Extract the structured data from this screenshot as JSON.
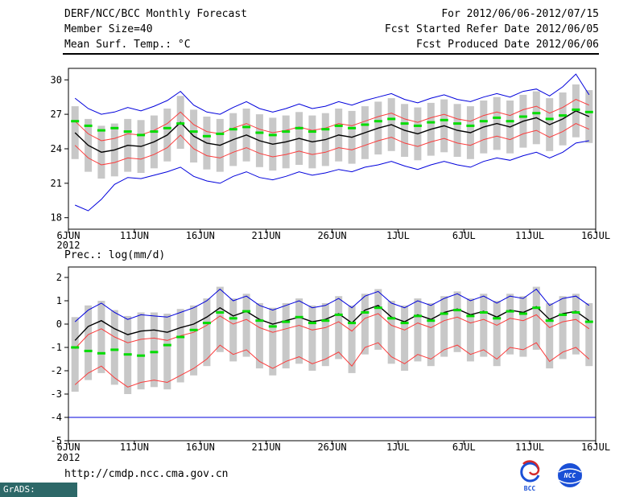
{
  "header": {
    "left": [
      "DERF/NCC/BCC Monthly Forecast",
      "Member Size=40",
      "Mean Surf. Temp.: °C"
    ],
    "right": [
      "For 2012/06/06-2012/07/15",
      "Fcst Started Refer Date 2012/06/05",
      "Fcst Produced Date 2012/06/06"
    ]
  },
  "footer": {
    "url": "http://cmdp.ncc.cma.gov.cn",
    "grads_credit": "GrADS: COLA/IGES",
    "logos": [
      {
        "label": "BCC"
      },
      {
        "label": "NCC"
      }
    ]
  },
  "colors": {
    "blue": "#0000dc",
    "red": "#fa3c3c",
    "black": "#000000",
    "green": "#00dc00",
    "gray_bar": "#c8c8c8",
    "frame": "#000000",
    "stamp_bg": "#2d6868",
    "logo_blue": "#1a4fd6",
    "logo_red": "#d42a2a"
  },
  "chart_data": [
    {
      "type": "line",
      "title": "Mean Surf. Temp.: °C",
      "x_tick_labels": [
        "6JUN",
        "11JUN",
        "16JUN",
        "21JUN",
        "26JUN",
        "1JUL",
        "6JUL",
        "11JUL",
        "16JUL"
      ],
      "x_sub_label": "2012",
      "n_days": 40,
      "x_axis_days": 40,
      "ylim": [
        17,
        31
      ],
      "yticks": [
        18,
        21,
        24,
        27,
        30
      ],
      "grid": false,
      "legend": false,
      "bars": {
        "name": "ensemble-spread",
        "low": [
          23.1,
          22.0,
          21.4,
          21.6,
          22.0,
          21.9,
          22.3,
          22.9,
          24.0,
          22.8,
          22.2,
          22.0,
          22.5,
          22.9,
          22.4,
          22.1,
          22.3,
          22.6,
          22.3,
          22.5,
          22.9,
          22.7,
          23.1,
          23.5,
          23.8,
          23.3,
          23.0,
          23.4,
          23.7,
          23.3,
          23.1,
          23.6,
          23.9,
          23.6,
          24.1,
          24.4,
          23.8,
          24.3,
          25.0,
          24.5
        ],
        "high": [
          27.7,
          26.6,
          26.0,
          26.2,
          26.6,
          26.5,
          26.9,
          27.5,
          28.6,
          27.4,
          26.8,
          26.6,
          27.1,
          27.5,
          27.0,
          26.7,
          26.9,
          27.2,
          26.9,
          27.1,
          27.5,
          27.3,
          27.7,
          28.1,
          28.4,
          27.9,
          27.6,
          28.0,
          28.3,
          27.9,
          27.7,
          28.2,
          28.5,
          28.2,
          28.7,
          29.0,
          28.4,
          28.9,
          29.6,
          29.1
        ]
      },
      "series": [
        {
          "name": "max",
          "color": "blue",
          "values": [
            28.4,
            27.5,
            27.0,
            27.2,
            27.6,
            27.3,
            27.7,
            28.2,
            29.0,
            27.8,
            27.2,
            27.0,
            27.6,
            28.1,
            27.5,
            27.2,
            27.5,
            27.9,
            27.5,
            27.7,
            28.1,
            27.8,
            28.2,
            28.5,
            28.8,
            28.3,
            28.0,
            28.4,
            28.7,
            28.3,
            28.1,
            28.5,
            28.8,
            28.5,
            29.0,
            29.2,
            28.6,
            29.4,
            30.5,
            28.7
          ]
        },
        {
          "name": "min",
          "color": "blue",
          "values": [
            19.1,
            18.6,
            19.6,
            20.9,
            21.5,
            21.4,
            21.7,
            22.0,
            22.4,
            21.6,
            21.2,
            21.0,
            21.6,
            22.0,
            21.5,
            21.3,
            21.6,
            22.0,
            21.7,
            21.9,
            22.2,
            22.0,
            22.4,
            22.6,
            22.9,
            22.5,
            22.2,
            22.6,
            22.9,
            22.6,
            22.4,
            22.9,
            23.2,
            23.0,
            23.4,
            23.7,
            23.2,
            23.7,
            24.5,
            24.7
          ]
        },
        {
          "name": "upper-quartile",
          "color": "red",
          "values": [
            26.4,
            25.3,
            24.7,
            24.9,
            25.3,
            25.2,
            25.6,
            26.2,
            27.2,
            26.1,
            25.5,
            25.3,
            25.8,
            26.2,
            25.7,
            25.4,
            25.6,
            25.9,
            25.6,
            25.8,
            26.2,
            26.0,
            26.4,
            26.8,
            27.1,
            26.6,
            26.3,
            26.7,
            27.0,
            26.6,
            26.4,
            26.9,
            27.2,
            26.9,
            27.4,
            27.7,
            27.1,
            27.6,
            28.3,
            27.8
          ]
        },
        {
          "name": "lower-quartile",
          "color": "red",
          "values": [
            24.3,
            23.2,
            22.6,
            22.8,
            23.2,
            23.1,
            23.5,
            24.1,
            25.2,
            24.0,
            23.4,
            23.2,
            23.7,
            24.1,
            23.6,
            23.3,
            23.5,
            23.8,
            23.5,
            23.7,
            24.1,
            23.9,
            24.3,
            24.7,
            25.0,
            24.5,
            24.2,
            24.6,
            24.9,
            24.5,
            24.3,
            24.8,
            25.1,
            24.8,
            25.3,
            25.6,
            25.0,
            25.5,
            26.2,
            25.7
          ]
        },
        {
          "name": "ensemble-mean",
          "color": "black",
          "width": 1.4,
          "values": [
            25.4,
            24.3,
            23.7,
            23.9,
            24.3,
            24.2,
            24.6,
            25.2,
            26.3,
            25.1,
            24.5,
            24.3,
            24.8,
            25.2,
            24.7,
            24.4,
            24.6,
            24.9,
            24.6,
            24.8,
            25.2,
            25.0,
            25.4,
            25.8,
            26.1,
            25.6,
            25.3,
            25.7,
            26.0,
            25.6,
            25.4,
            25.9,
            26.2,
            25.9,
            26.4,
            26.7,
            26.1,
            26.6,
            27.3,
            26.8
          ]
        }
      ],
      "dashes": {
        "name": "observation",
        "color": "green",
        "values": [
          26.4,
          26.0,
          25.6,
          25.8,
          25.5,
          25.2,
          25.5,
          25.8,
          26.2,
          25.5,
          25.1,
          25.3,
          25.7,
          25.9,
          25.4,
          25.2,
          25.5,
          25.8,
          25.5,
          25.7,
          26.0,
          25.8,
          26.1,
          26.4,
          26.6,
          26.2,
          26.0,
          26.3,
          26.5,
          26.2,
          26.0,
          26.4,
          26.7,
          26.4,
          26.8,
          27.1,
          26.6,
          26.9,
          27.4,
          27.2
        ]
      }
    },
    {
      "type": "line",
      "title": "Prec.: log(mm/d)",
      "x_tick_labels": [
        "6JUN",
        "11JUN",
        "16JUN",
        "21JUN",
        "26JUN",
        "1JUL",
        "6JUL",
        "11JUL",
        "16JUL"
      ],
      "x_sub_label": "2012",
      "n_days": 40,
      "x_axis_days": 40,
      "ylim": [
        -5,
        2.45
      ],
      "yticks": [
        2,
        1,
        0,
        -1,
        -2,
        -3,
        -4,
        -5
      ],
      "grid": false,
      "legend": false,
      "bars": {
        "name": "ensemble-spread",
        "low": [
          -2.9,
          -2.4,
          -2.1,
          -2.6,
          -3.0,
          -2.8,
          -2.7,
          -2.8,
          -2.5,
          -2.2,
          -1.8,
          -1.2,
          -1.6,
          -1.4,
          -1.9,
          -2.2,
          -1.9,
          -1.7,
          -2.0,
          -1.8,
          -1.5,
          -2.1,
          -1.3,
          -1.1,
          -1.7,
          -2.0,
          -1.6,
          -1.8,
          -1.4,
          -1.2,
          -1.6,
          -1.4,
          -1.8,
          -1.3,
          -1.4,
          -1.1,
          -1.9,
          -1.5,
          -1.3,
          -1.8
        ],
        "high": [
          0.3,
          0.8,
          1.0,
          0.6,
          0.35,
          0.5,
          0.5,
          0.45,
          0.65,
          0.8,
          1.1,
          1.6,
          1.1,
          1.3,
          0.9,
          0.7,
          0.9,
          1.1,
          0.8,
          0.9,
          1.2,
          0.8,
          1.3,
          1.5,
          1.0,
          0.8,
          1.1,
          0.9,
          1.2,
          1.4,
          1.1,
          1.3,
          1.0,
          1.3,
          1.2,
          1.6,
          0.9,
          1.2,
          1.3,
          0.9
        ]
      },
      "series": [
        {
          "name": "max",
          "color": "blue",
          "values": [
            0.1,
            0.6,
            0.9,
            0.5,
            0.2,
            0.4,
            0.35,
            0.3,
            0.5,
            0.7,
            1.0,
            1.5,
            1.0,
            1.2,
            0.8,
            0.6,
            0.8,
            1.0,
            0.7,
            0.8,
            1.1,
            0.7,
            1.2,
            1.4,
            0.9,
            0.7,
            1.0,
            0.8,
            1.1,
            1.3,
            1.0,
            1.2,
            0.9,
            1.2,
            1.1,
            1.5,
            0.8,
            1.1,
            1.2,
            0.8
          ]
        },
        {
          "name": "min",
          "color": "blue",
          "constant": -4
        },
        {
          "name": "upper-quartile",
          "color": "red",
          "values": [
            -1.05,
            -0.45,
            -0.2,
            -0.55,
            -0.8,
            -0.65,
            -0.6,
            -0.7,
            -0.5,
            -0.35,
            -0.05,
            0.35,
            0.0,
            0.2,
            -0.15,
            -0.35,
            -0.2,
            -0.05,
            -0.25,
            -0.15,
            0.1,
            -0.3,
            0.25,
            0.45,
            -0.05,
            -0.25,
            0.05,
            -0.15,
            0.15,
            0.3,
            0.05,
            0.2,
            -0.05,
            0.25,
            0.15,
            0.4,
            -0.15,
            0.1,
            0.2,
            -0.2
          ]
        },
        {
          "name": "lower-quartile",
          "color": "red",
          "values": [
            -2.6,
            -2.1,
            -1.8,
            -2.3,
            -2.7,
            -2.5,
            -2.4,
            -2.5,
            -2.2,
            -1.9,
            -1.5,
            -0.9,
            -1.3,
            -1.1,
            -1.6,
            -1.9,
            -1.6,
            -1.4,
            -1.7,
            -1.5,
            -1.2,
            -1.8,
            -1.0,
            -0.8,
            -1.4,
            -1.7,
            -1.3,
            -1.5,
            -1.1,
            -0.9,
            -1.3,
            -1.1,
            -1.5,
            -1.0,
            -1.1,
            -0.8,
            -1.6,
            -1.2,
            -1.0,
            -1.5
          ]
        },
        {
          "name": "ensemble-mean",
          "color": "black",
          "width": 1.4,
          "values": [
            -0.7,
            -0.1,
            0.15,
            -0.2,
            -0.45,
            -0.3,
            -0.25,
            -0.35,
            -0.15,
            0.0,
            0.3,
            0.7,
            0.35,
            0.55,
            0.2,
            0.0,
            0.15,
            0.3,
            0.1,
            0.2,
            0.45,
            0.05,
            0.6,
            0.8,
            0.3,
            0.1,
            0.4,
            0.2,
            0.5,
            0.65,
            0.4,
            0.55,
            0.3,
            0.6,
            0.5,
            0.75,
            0.2,
            0.45,
            0.55,
            0.15
          ]
        }
      ],
      "dashes": {
        "name": "observation",
        "color": "green",
        "values": [
          -1.0,
          -1.15,
          -1.25,
          -1.1,
          -1.3,
          -1.35,
          -1.2,
          -0.9,
          -0.55,
          -0.25,
          0.05,
          0.5,
          0.25,
          0.55,
          0.15,
          -0.1,
          0.1,
          0.3,
          0.05,
          0.15,
          0.4,
          0.05,
          0.5,
          0.7,
          0.25,
          0.05,
          0.35,
          0.15,
          0.45,
          0.6,
          0.35,
          0.5,
          0.25,
          0.55,
          0.45,
          0.7,
          0.15,
          0.4,
          0.5,
          0.1
        ]
      }
    }
  ]
}
